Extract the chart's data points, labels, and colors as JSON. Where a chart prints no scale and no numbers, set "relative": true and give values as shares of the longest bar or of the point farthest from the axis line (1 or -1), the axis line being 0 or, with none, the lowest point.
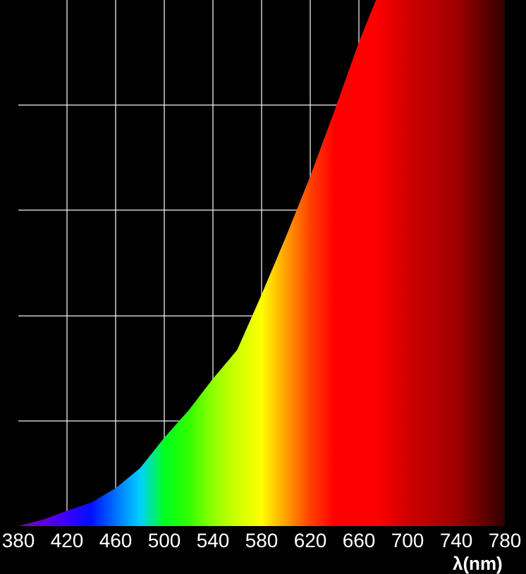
{
  "chart_data": {
    "type": "area",
    "relative": true,
    "xlabel": "λ(nm)",
    "xlim": [
      380,
      780
    ],
    "xticks": [
      380,
      420,
      460,
      500,
      540,
      580,
      620,
      660,
      700,
      740,
      780
    ],
    "grid": true,
    "series": [
      {
        "x": [
          380,
          400,
          420,
          440,
          460,
          480,
          500,
          520,
          540,
          560,
          580,
          600,
          620,
          640,
          660,
          674,
          700,
          740,
          780
        ],
        "values": [
          0,
          0.012,
          0.029,
          0.045,
          0.072,
          0.11,
          0.168,
          0.22,
          0.28,
          0.335,
          0.44,
          0.55,
          0.665,
          0.79,
          0.92,
          1,
          1,
          1,
          1
        ],
        "colors": [
          "#7a00c0",
          "#6000e0",
          "#3a00ff",
          "#0010ff",
          "#0070ff",
          "#00d0ff",
          "#00ff20",
          "#30ff00",
          "#90ff00",
          "#d0ff00",
          "#ffff00",
          "#ffa000",
          "#ff4000",
          "#ff0000",
          "#ff0000",
          "#ff0000",
          "#d00000",
          "#a00000",
          "#300000"
        ]
      }
    ]
  }
}
